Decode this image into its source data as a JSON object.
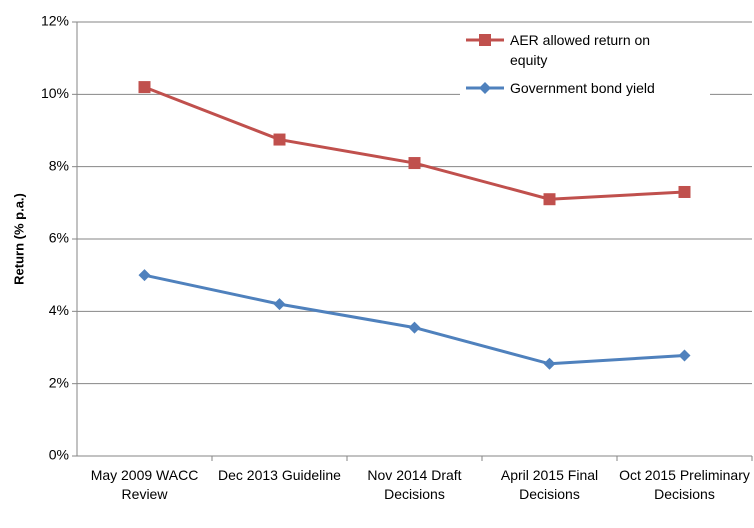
{
  "chart_data": {
    "type": "line",
    "ylabel": "Return (% p.a.)",
    "categories": [
      "May 2009 WACC Review",
      "Dec 2013 Guideline",
      "Nov 2014 Draft Decisions",
      "April 2015 Final Decisions",
      "Oct 2015 Preliminary Decisions"
    ],
    "series": [
      {
        "name": "AER allowed return on equity",
        "color": "#c0504d",
        "marker": "square",
        "values": [
          10.2,
          8.75,
          8.1,
          7.1,
          7.3
        ]
      },
      {
        "name": "Government bond yield",
        "color": "#4f81bd",
        "marker": "diamond",
        "values": [
          5.0,
          4.2,
          3.55,
          2.55,
          2.78
        ]
      }
    ],
    "ylim": [
      0,
      12
    ],
    "yticks": [
      {
        "value": 0,
        "label": "0%"
      },
      {
        "value": 2,
        "label": "2%"
      },
      {
        "value": 4,
        "label": "4%"
      },
      {
        "value": 6,
        "label": "6%"
      },
      {
        "value": 8,
        "label": "8%"
      },
      {
        "value": 10,
        "label": "10%"
      },
      {
        "value": 12,
        "label": "12%"
      }
    ],
    "grid": true,
    "legend": "top-right"
  }
}
